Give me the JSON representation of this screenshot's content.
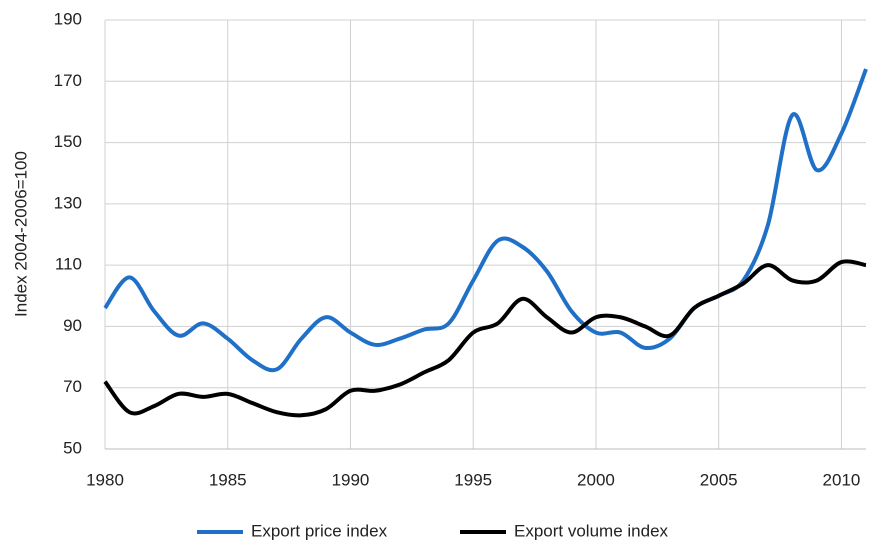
{
  "chart_data": {
    "type": "line",
    "y_label": "Index 2004-2006=100",
    "x": [
      1980,
      1981,
      1982,
      1983,
      1984,
      1985,
      1986,
      1987,
      1988,
      1989,
      1990,
      1991,
      1992,
      1993,
      1994,
      1995,
      1996,
      1997,
      1998,
      1999,
      2000,
      2001,
      2002,
      2003,
      2004,
      2005,
      2006,
      2007,
      2008,
      2009,
      2010,
      2011
    ],
    "series": [
      {
        "name": "Export price index",
        "color": "#1f70c6",
        "values": [
          96,
          106,
          95,
          87,
          91,
          86,
          79,
          76,
          86,
          93,
          88,
          84,
          86,
          89,
          91,
          105,
          118,
          116,
          108,
          95,
          88,
          88,
          83,
          86,
          96,
          100,
          105,
          123,
          159,
          141,
          153,
          174
        ]
      },
      {
        "name": "Export volume index",
        "color": "#000000",
        "values": [
          72,
          62,
          64,
          68,
          67,
          68,
          65,
          62,
          61,
          63,
          69,
          69,
          71,
          75,
          79,
          88,
          91,
          99,
          93,
          88,
          93,
          93,
          90,
          87,
          96,
          100,
          104,
          110,
          105,
          105,
          111,
          110
        ]
      }
    ],
    "xlim": [
      1980,
      2011
    ],
    "xticks": [
      1980,
      1985,
      1990,
      1995,
      2000,
      2005,
      2010
    ],
    "ylim": [
      50,
      190
    ],
    "yticks": [
      50,
      70,
      90,
      110,
      130,
      150,
      170,
      190
    ],
    "grid": true,
    "legend": "bottom"
  }
}
